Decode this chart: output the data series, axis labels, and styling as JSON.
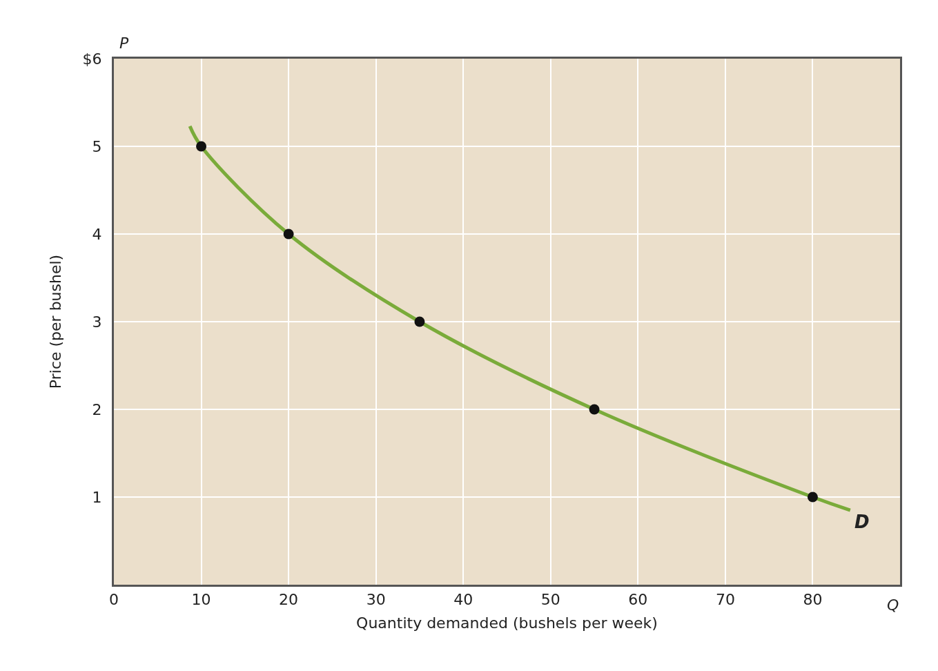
{
  "chart_data": {
    "type": "line",
    "xlabel": "Quantity demanded (bushels per week)",
    "ylabel": "Price (per bushel)",
    "series": [
      {
        "color": "#7aab3a",
        "marker": "none",
        "x": [
          8.7,
          10,
          20,
          35,
          55,
          80,
          84.3
        ],
        "values": [
          5.23,
          5,
          4,
          3,
          2,
          1,
          0.85
        ]
      },
      {
        "type": "scatter",
        "color": "#111111",
        "marker": "circle",
        "x": [
          10,
          20,
          35,
          55,
          80
        ],
        "values": [
          5,
          4,
          3,
          2,
          1
        ]
      }
    ],
    "xlim": [
      0,
      90
    ],
    "ylim": [
      0,
      6
    ],
    "xticks": [
      0,
      10,
      20,
      30,
      40,
      50,
      60,
      70,
      80
    ],
    "yticks": [
      1,
      2,
      3,
      4,
      5,
      {
        "value": 6,
        "label": "$6"
      }
    ],
    "grid": true,
    "annotations": [
      {
        "text": "D",
        "x": 84.3,
        "y": 0.85
      },
      "P",
      "Q"
    ]
  }
}
